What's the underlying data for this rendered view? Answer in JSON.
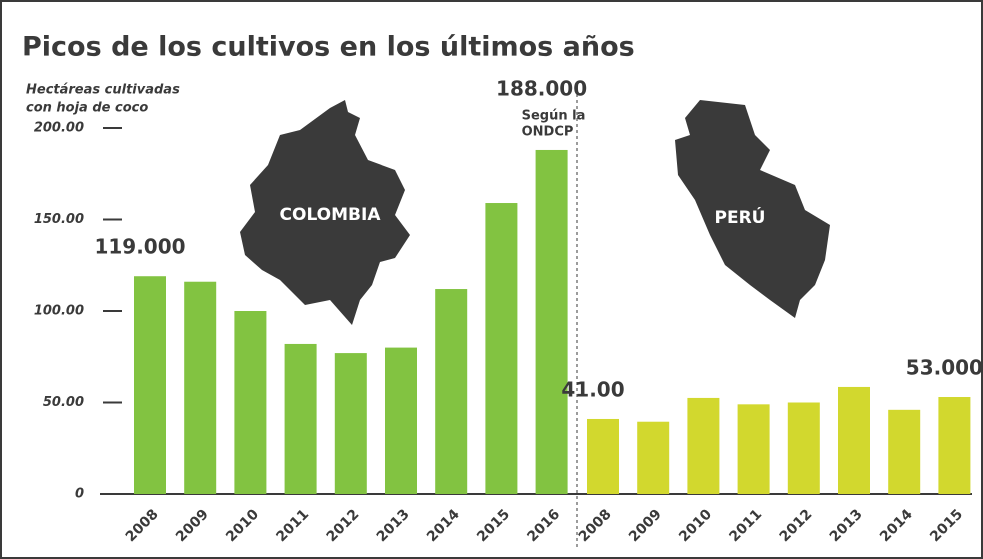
{
  "chart_data": {
    "type": "bar",
    "title": "Picos de los cultivos en los últimos años",
    "ylabel_lines": [
      "Hectáreas cultivadas",
      "con hoja de coco"
    ],
    "ylim": [
      0,
      200
    ],
    "yticks": [
      {
        "value": 200,
        "label": "200.00"
      },
      {
        "value": 150,
        "label": "150.00"
      },
      {
        "value": 100,
        "label": "100.00"
      },
      {
        "value": 50,
        "label": "50.00"
      },
      0
    ],
    "groups": [
      {
        "name": "COLOMBIA",
        "color": "#82c341",
        "categories": [
          "2008",
          "2009",
          "2010",
          "2011",
          "2012",
          "2013",
          "2014",
          "2015",
          "2016"
        ],
        "values": [
          119,
          116,
          100,
          82,
          77,
          80,
          112,
          159,
          188
        ],
        "value_labels": [
          "119.000",
          null,
          null,
          null,
          null,
          null,
          null,
          null,
          "188.000"
        ],
        "annotations": [
          null,
          null,
          null,
          null,
          null,
          null,
          null,
          null,
          [
            "Según la",
            "ONDCP"
          ]
        ]
      },
      {
        "name": "PERÚ",
        "color": "#d2d82e",
        "categories": [
          "2008",
          "2009",
          "2010",
          "2011",
          "2012",
          "2013",
          "2014",
          "2015"
        ],
        "values": [
          41,
          39.5,
          52.5,
          49,
          50,
          58.5,
          46,
          53
        ],
        "value_labels": [
          "41.00",
          null,
          null,
          null,
          null,
          null,
          null,
          "53.000"
        ],
        "annotations": [
          null,
          null,
          null,
          null,
          null,
          null,
          null,
          null
        ]
      }
    ]
  }
}
